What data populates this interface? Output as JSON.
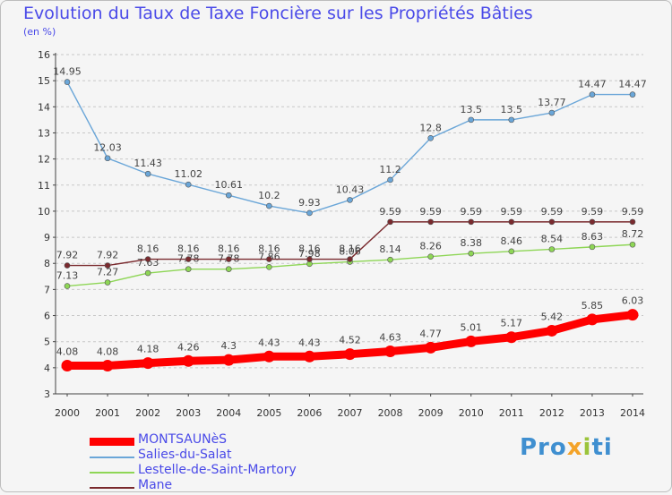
{
  "header": {
    "title": "Evolution du Taux de Taxe Foncière sur les Propriétés Bâties",
    "unit": "(en %)"
  },
  "brand": {
    "logo_text": "Proxiti",
    "colors": [
      "#3f8fd0",
      "#9bc43a",
      "#f4a328"
    ]
  },
  "chart_data": {
    "type": "line",
    "title": "Evolution du Taux de Taxe Foncière sur les Propriétés Bâties",
    "subtitle": "(en %)",
    "xlabel": "",
    "ylabel": "",
    "ylim": [
      3,
      16
    ],
    "y_ticks": [
      3,
      4,
      5,
      6,
      7,
      8,
      9,
      10,
      11,
      12,
      13,
      14,
      15,
      16
    ],
    "grid": "horizontal dashed",
    "legend_position": "bottom-left",
    "x": [
      "2000",
      "2001",
      "2002",
      "2003",
      "2004",
      "2005",
      "2006",
      "2007",
      "2008",
      "2009",
      "2010",
      "2011",
      "2012",
      "2013",
      "2014"
    ],
    "series": [
      {
        "name": "MONTSAUNèS",
        "color": "#ff0000",
        "emphasis": "thick",
        "values": [
          4.08,
          4.08,
          4.18,
          4.26,
          4.3,
          4.43,
          4.43,
          4.52,
          4.63,
          4.77,
          5.01,
          5.17,
          5.42,
          5.85,
          6.03
        ],
        "labels": [
          "4.08",
          "4.08",
          "4.18",
          "4.26",
          "4.3",
          "4.43",
          "4.43",
          "4.52",
          "4.63",
          "4.77",
          "5.01",
          "5.17",
          "5.42",
          "5.85",
          "6.03"
        ]
      },
      {
        "name": "Salies-du-Salat",
        "color": "#6aa6d8",
        "values": [
          14.95,
          12.03,
          11.43,
          11.02,
          10.61,
          10.2,
          9.93,
          10.43,
          11.2,
          12.8,
          13.5,
          13.5,
          13.77,
          14.47,
          14.47
        ],
        "labels": [
          "14.95",
          "12.03",
          "11.43",
          "11.02",
          "10.61",
          "10.2",
          "9.93",
          "10.43",
          "11.2",
          "12.8",
          "13.5",
          "13.5",
          "13.77",
          "14.47",
          "14.47"
        ]
      },
      {
        "name": "Lestelle-de-Saint-Martory",
        "color": "#8ed656",
        "values": [
          7.13,
          7.27,
          7.63,
          7.78,
          7.78,
          7.86,
          7.98,
          8.06,
          8.14,
          8.26,
          8.38,
          8.46,
          8.54,
          8.63,
          8.72
        ],
        "labels": [
          "7.13",
          "7.27",
          "7.63",
          "7.78",
          "7.78",
          "7.86",
          "7.98",
          "8.06",
          "8.14",
          "8.26",
          "8.38",
          "8.46",
          "8.54",
          "8.63",
          "8.72"
        ]
      },
      {
        "name": "Mane",
        "color": "#7a2a2e",
        "values": [
          7.92,
          7.92,
          8.16,
          8.16,
          8.16,
          8.16,
          8.16,
          8.16,
          9.59,
          9.59,
          9.59,
          9.59,
          9.59,
          9.59,
          9.59
        ],
        "labels": [
          "7.92",
          "7.92",
          "8.16",
          "8.16",
          "8.16",
          "8.16",
          "8.16",
          "8.16",
          "9.59",
          "9.59",
          "9.59",
          "9.59",
          "9.59",
          "9.59",
          "9.59"
        ]
      }
    ]
  }
}
